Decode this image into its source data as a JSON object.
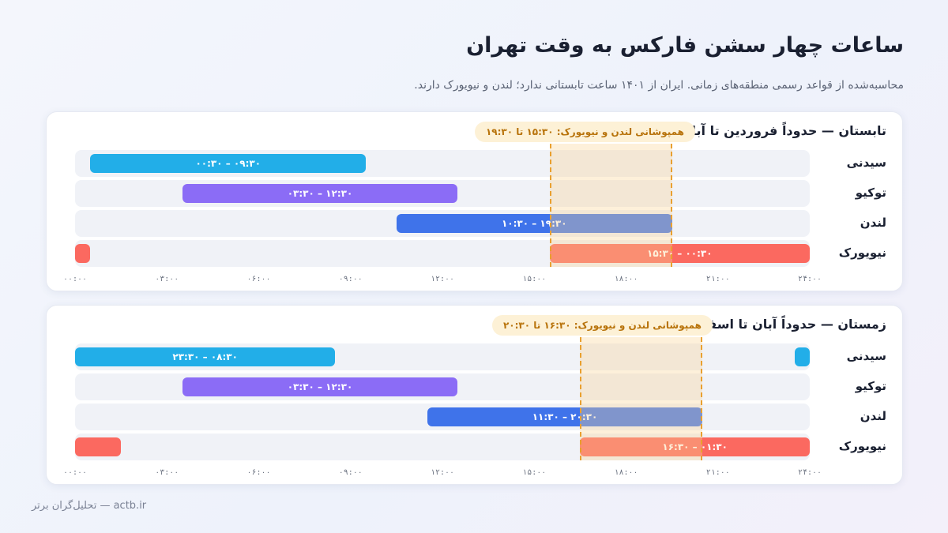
{
  "header": {
    "title": "ساعات چهار سشن فارکس به وقت تهران",
    "subtitle": "محاسبه‌شده از قواعد رسمی منطقه‌های زمانی. ایران از ۱۴۰۱ ساعت تابستانی ندارد؛ لندن و نیویورک دارند."
  },
  "footer": {
    "text": "actb.ir — تحلیل‌گران برتر"
  },
  "colors": {
    "sydney": "#22aee8",
    "tokyo": "#8b6cf6",
    "london": "#3f73ea",
    "newyork": "#fb6960",
    "overlap": "#e9a030"
  },
  "chart_data": [
    {
      "type": "bar",
      "title": "تابستان — حدوداً فروردین تا آبان",
      "annotation": "همپوشانی لندن و نیویورک: ۱۵:۳۰ تا ۱۹:۳۰",
      "overlap": [
        15.5,
        19.5
      ],
      "xlim": [
        0,
        24
      ],
      "xticks": [
        "۰۰:۰۰",
        "۰۳:۰۰",
        "۰۶:۰۰",
        "۰۹:۰۰",
        "۱۲:۰۰",
        "۱۵:۰۰",
        "۱۸:۰۰",
        "۲۱:۰۰",
        "۲۴:۰۰"
      ],
      "series": [
        {
          "name": "سیدنی",
          "key": "sydney",
          "segments": [
            [
              0.5,
              9.5
            ]
          ],
          "label": "۰۰:۳۰ – ۰۹:۳۰",
          "label_segment": 0
        },
        {
          "name": "توکیو",
          "key": "tokyo",
          "segments": [
            [
              3.5,
              12.5
            ]
          ],
          "label": "۰۳:۳۰ – ۱۲:۳۰",
          "label_segment": 0
        },
        {
          "name": "لندن",
          "key": "london",
          "segments": [
            [
              10.5,
              19.5
            ]
          ],
          "label": "۱۰:۳۰ – ۱۹:۳۰",
          "label_segment": 0
        },
        {
          "name": "نیویورک",
          "key": "newyork",
          "segments": [
            [
              0,
              0.5
            ],
            [
              15.5,
              24
            ]
          ],
          "label": "۱۵:۳۰ – ۰۰:۳۰",
          "label_segment": 1
        }
      ]
    },
    {
      "type": "bar",
      "title": "زمستان — حدوداً آبان تا اسفند",
      "annotation": "همپوشانی لندن و نیویورک: ۱۶:۳۰ تا ۲۰:۳۰",
      "overlap": [
        16.5,
        20.5
      ],
      "xlim": [
        0,
        24
      ],
      "xticks": [
        "۰۰:۰۰",
        "۰۳:۰۰",
        "۰۶:۰۰",
        "۰۹:۰۰",
        "۱۲:۰۰",
        "۱۵:۰۰",
        "۱۸:۰۰",
        "۲۱:۰۰",
        "۲۴:۰۰"
      ],
      "series": [
        {
          "name": "سیدنی",
          "key": "sydney",
          "segments": [
            [
              0,
              8.5
            ],
            [
              23.5,
              24
            ]
          ],
          "label": "۲۳:۳۰ – ۰۸:۳۰",
          "label_segment": 0
        },
        {
          "name": "توکیو",
          "key": "tokyo",
          "segments": [
            [
              3.5,
              12.5
            ]
          ],
          "label": "۰۳:۳۰ – ۱۲:۳۰",
          "label_segment": 0
        },
        {
          "name": "لندن",
          "key": "london",
          "segments": [
            [
              11.5,
              20.5
            ]
          ],
          "label": "۱۱:۳۰ – ۲۰:۳۰",
          "label_segment": 0
        },
        {
          "name": "نیویورک",
          "key": "newyork",
          "segments": [
            [
              0,
              1.5
            ],
            [
              16.5,
              24
            ]
          ],
          "label": "۱۶:۳۰ – ۰۱:۳۰",
          "label_segment": 1
        }
      ]
    }
  ]
}
